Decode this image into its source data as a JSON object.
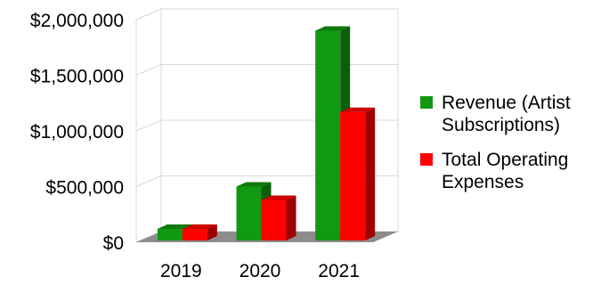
{
  "chart_data": {
    "type": "bar",
    "categories": [
      "2019",
      "2020",
      "2021"
    ],
    "series": [
      {
        "name": "Revenue (Artist Subscriptions)",
        "legend_lines": [
          "Revenue (Artist",
          "Subscriptions)"
        ],
        "values": [
          120000,
          500000,
          1900000
        ],
        "color": "#119911"
      },
      {
        "name": "Total Operating Expenses",
        "legend_lines": [
          "Total Operating",
          "Expenses"
        ],
        "values": [
          120000,
          380000,
          1170000
        ],
        "color": "#ff0000"
      }
    ],
    "y_ticks": [
      {
        "value": 0,
        "label": "$0"
      },
      {
        "value": 500000,
        "label": "$500,000"
      },
      {
        "value": 1000000,
        "label": "$1,000,000"
      },
      {
        "value": 1500000,
        "label": "$1,500,000"
      },
      {
        "value": 2000000,
        "label": "$2,000,000"
      }
    ],
    "ylim": [
      0,
      2000000
    ],
    "grid": true,
    "legend_position": "right",
    "three_d": true
  }
}
